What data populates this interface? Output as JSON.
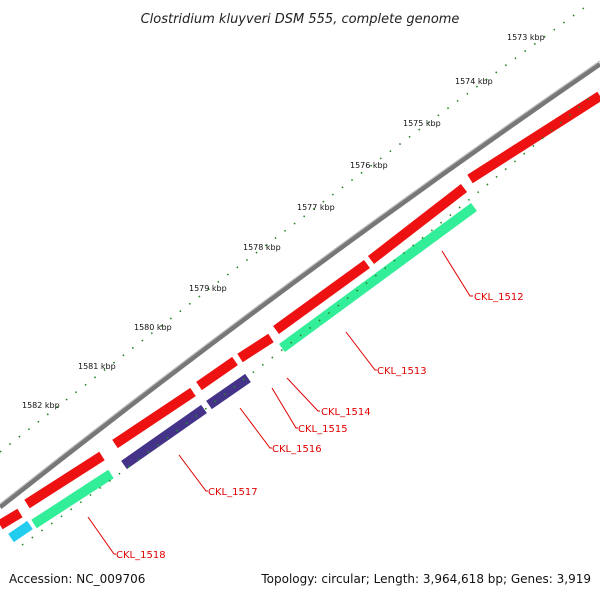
{
  "title": "Clostridium kluyveri DSM 555, complete genome",
  "accession": "Accession: NC_009706",
  "summary": "Topology: circular; Length: 3,964,618 bp; Genes: 3,919",
  "kbp_labels": [
    "1573 kbp",
    "1574 kbp",
    "1575 kbp",
    "1576 kbp",
    "1577 kbp",
    "1578 kbp",
    "1579 kbp",
    "1580 kbp",
    "1581 kbp",
    "1582 kbp"
  ],
  "gene_labels": [
    "CKL_1512",
    "CKL_1513",
    "CKL_1514",
    "CKL_1515",
    "CKL_1516",
    "CKL_1517",
    "CKL_1518"
  ],
  "colors": {
    "backbone": "#808080",
    "cds": "#ee1111",
    "gene_green": "#33ee99",
    "gene_blue": "#443388",
    "gene_cyan": "#22ccee",
    "ticks": "#228822",
    "label": "#e00000"
  }
}
